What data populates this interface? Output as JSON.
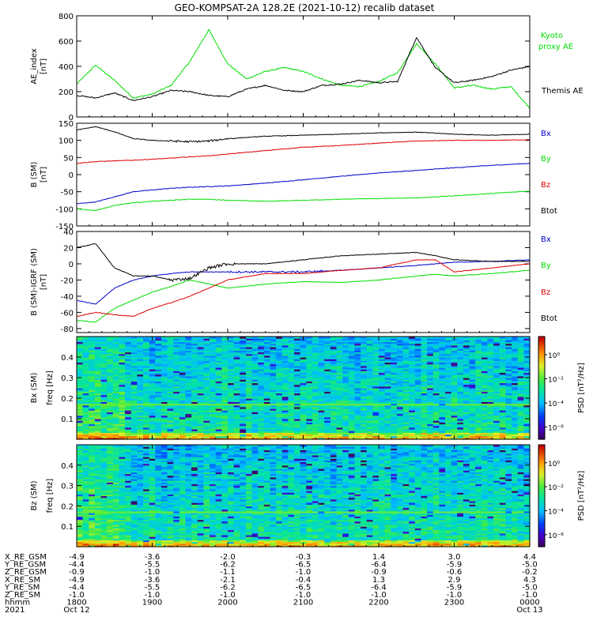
{
  "title": "GEO-KOMPSAT-2A 128.2E (2021-10-12) recalib dataset",
  "colors": {
    "black": "#000000",
    "green": "#00dd00",
    "blue": "#0000cc",
    "red": "#dd0000"
  },
  "time_axis": {
    "start_hour": 18.0,
    "end_hour": 24.0,
    "tick_hours": [
      18,
      19,
      20,
      21,
      22,
      23,
      24
    ]
  },
  "chart_data": [
    {
      "type": "line",
      "ylabel": "AE_index [nT]",
      "ylim": [
        0,
        800
      ],
      "yticks": [
        "0",
        "200",
        "400",
        "600",
        "800"
      ],
      "x_hours": [
        18.0,
        18.25,
        18.5,
        18.75,
        19.0,
        19.25,
        19.5,
        19.75,
        20.0,
        20.25,
        20.5,
        20.75,
        21.0,
        21.25,
        21.5,
        21.75,
        22.0,
        22.25,
        22.5,
        22.75,
        23.0,
        23.25,
        23.5,
        23.75,
        24.0
      ],
      "series": [
        {
          "name": "Kyoto proxy AE",
          "color": "green",
          "values": [
            260,
            410,
            290,
            150,
            180,
            250,
            440,
            690,
            420,
            300,
            360,
            390,
            360,
            300,
            250,
            240,
            280,
            350,
            580,
            420,
            230,
            250,
            220,
            240,
            70
          ]
        },
        {
          "name": "Themis AE",
          "color": "black",
          "values": [
            170,
            150,
            190,
            130,
            160,
            210,
            200,
            170,
            160,
            220,
            250,
            210,
            200,
            250,
            260,
            290,
            270,
            280,
            630,
            390,
            270,
            290,
            320,
            370,
            400
          ]
        }
      ]
    },
    {
      "type": "line",
      "ylabel": "B (SM) [nT]",
      "ylim": [
        -150,
        150
      ],
      "yticks": [
        "-150",
        "-100",
        "-50",
        "0",
        "50",
        "100",
        "150"
      ],
      "x_hours": [
        18.0,
        18.25,
        18.5,
        18.75,
        19.0,
        19.25,
        19.5,
        19.75,
        20.0,
        20.5,
        21.0,
        21.5,
        22.0,
        22.5,
        23.0,
        23.5,
        24.0
      ],
      "series": [
        {
          "name": "Bx",
          "color": "blue",
          "values": [
            -85,
            -80,
            -65,
            -50,
            -45,
            -40,
            -37,
            -35,
            -33,
            -25,
            -15,
            -5,
            5,
            12,
            20,
            27,
            33
          ]
        },
        {
          "name": "By",
          "color": "green",
          "values": [
            -100,
            -105,
            -90,
            -82,
            -78,
            -75,
            -72,
            -72,
            -75,
            -78,
            -75,
            -72,
            -70,
            -68,
            -62,
            -55,
            -48
          ]
        },
        {
          "name": "Bz",
          "color": "red",
          "values": [
            33,
            38,
            40,
            42,
            45,
            48,
            52,
            55,
            60,
            70,
            80,
            85,
            92,
            98,
            100,
            100,
            102
          ]
        },
        {
          "name": "Btot",
          "color": "black",
          "values": [
            130,
            140,
            125,
            105,
            100,
            98,
            96,
            98,
            105,
            112,
            115,
            118,
            122,
            124,
            118,
            115,
            118
          ]
        }
      ]
    },
    {
      "type": "line",
      "ylabel": "B (SM)-IGRF (SM) [nT]",
      "ylim": [
        -85,
        40
      ],
      "yticks": [
        "-80",
        "-60",
        "-40",
        "-20",
        "0",
        "20",
        "40"
      ],
      "x_hours": [
        18.0,
        18.25,
        18.5,
        18.75,
        19.0,
        19.25,
        19.5,
        19.75,
        20.0,
        20.5,
        21.0,
        21.5,
        22.0,
        22.5,
        22.75,
        23.0,
        23.5,
        24.0
      ],
      "series": [
        {
          "name": "Bx",
          "color": "blue",
          "values": [
            -45,
            -50,
            -30,
            -20,
            -15,
            -12,
            -10,
            -10,
            -10,
            -10,
            -10,
            -8,
            -5,
            -2,
            0,
            2,
            3,
            5
          ]
        },
        {
          "name": "By",
          "color": "green",
          "values": [
            -70,
            -72,
            -55,
            -45,
            -35,
            -28,
            -20,
            -25,
            -30,
            -25,
            -22,
            -23,
            -20,
            -15,
            -13,
            -15,
            -12,
            -8
          ]
        },
        {
          "name": "Bz",
          "color": "red",
          "values": [
            -65,
            -60,
            -63,
            -65,
            -55,
            -48,
            -40,
            -30,
            -20,
            -12,
            -12,
            -8,
            -5,
            5,
            5,
            -10,
            -5,
            0
          ]
        },
        {
          "name": "Btot",
          "color": "black",
          "values": [
            20,
            25,
            -5,
            -15,
            -15,
            -20,
            -18,
            -5,
            0,
            0,
            5,
            10,
            12,
            14,
            10,
            5,
            3,
            3
          ]
        }
      ]
    },
    {
      "type": "heatmap",
      "ylabel": "Bx (SM) freq [Hz]",
      "ylim": [
        0,
        0.5
      ],
      "yticks": [
        "0.1",
        "0.2",
        "0.3",
        "0.4"
      ],
      "colorbar": {
        "label": "PSD [nT²/Hz]",
        "ticks": [
          "10⁰",
          "10⁻²",
          "10⁻⁴",
          "10⁻⁶"
        ],
        "range_log10": [
          -7,
          1.5
        ]
      }
    },
    {
      "type": "heatmap",
      "ylabel": "Bz (SM) freq [Hz]",
      "ylim": [
        0,
        0.5
      ],
      "yticks": [
        "0.1",
        "0.2",
        "0.3",
        "0.4"
      ],
      "colorbar": {
        "label": "PSD [nT²/Hz]",
        "ticks": [
          "10⁰",
          "10⁻²",
          "10⁻⁴",
          "10⁻⁶"
        ],
        "range_log10": [
          -7,
          1.5
        ]
      }
    }
  ],
  "ephemeris": {
    "rows": [
      {
        "label": "X_RE_GSM",
        "values": [
          "-4.9",
          "-3.6",
          "-2.0",
          "-0.3",
          "1.4",
          "3.0",
          "4.4"
        ]
      },
      {
        "label": "Y_RE_GSM",
        "values": [
          "-4.4",
          "-5.5",
          "-6.2",
          "-6.5",
          "-6.4",
          "-5.9",
          "-5.0"
        ]
      },
      {
        "label": "Z_RE_GSM",
        "values": [
          "-0.9",
          "-1.0",
          "-1.1",
          "-1.0",
          "-0.9",
          "-0.6",
          "-0.2"
        ]
      },
      {
        "label": "X_RE_SM",
        "values": [
          "-4.9",
          "-3.6",
          "-2.1",
          "-0.4",
          "1.3",
          "2.9",
          "4.3"
        ]
      },
      {
        "label": "Y_RE_SM",
        "values": [
          "-4.4",
          "-5.5",
          "-6.2",
          "-6.5",
          "-6.4",
          "-5.9",
          "-5.0"
        ]
      },
      {
        "label": "Z_RE_SM",
        "values": [
          "-1.0",
          "-1.0",
          "-1.0",
          "-1.0",
          "-1.0",
          "-1.0",
          "-1.0"
        ]
      },
      {
        "label": "hhmm",
        "values": [
          "1800",
          "1900",
          "2000",
          "2100",
          "2200",
          "2300",
          "0000"
        ]
      },
      {
        "label": "2021",
        "values": [
          "Oct 12",
          "",
          "",
          "",
          "",
          "",
          "Oct 13"
        ]
      }
    ]
  }
}
